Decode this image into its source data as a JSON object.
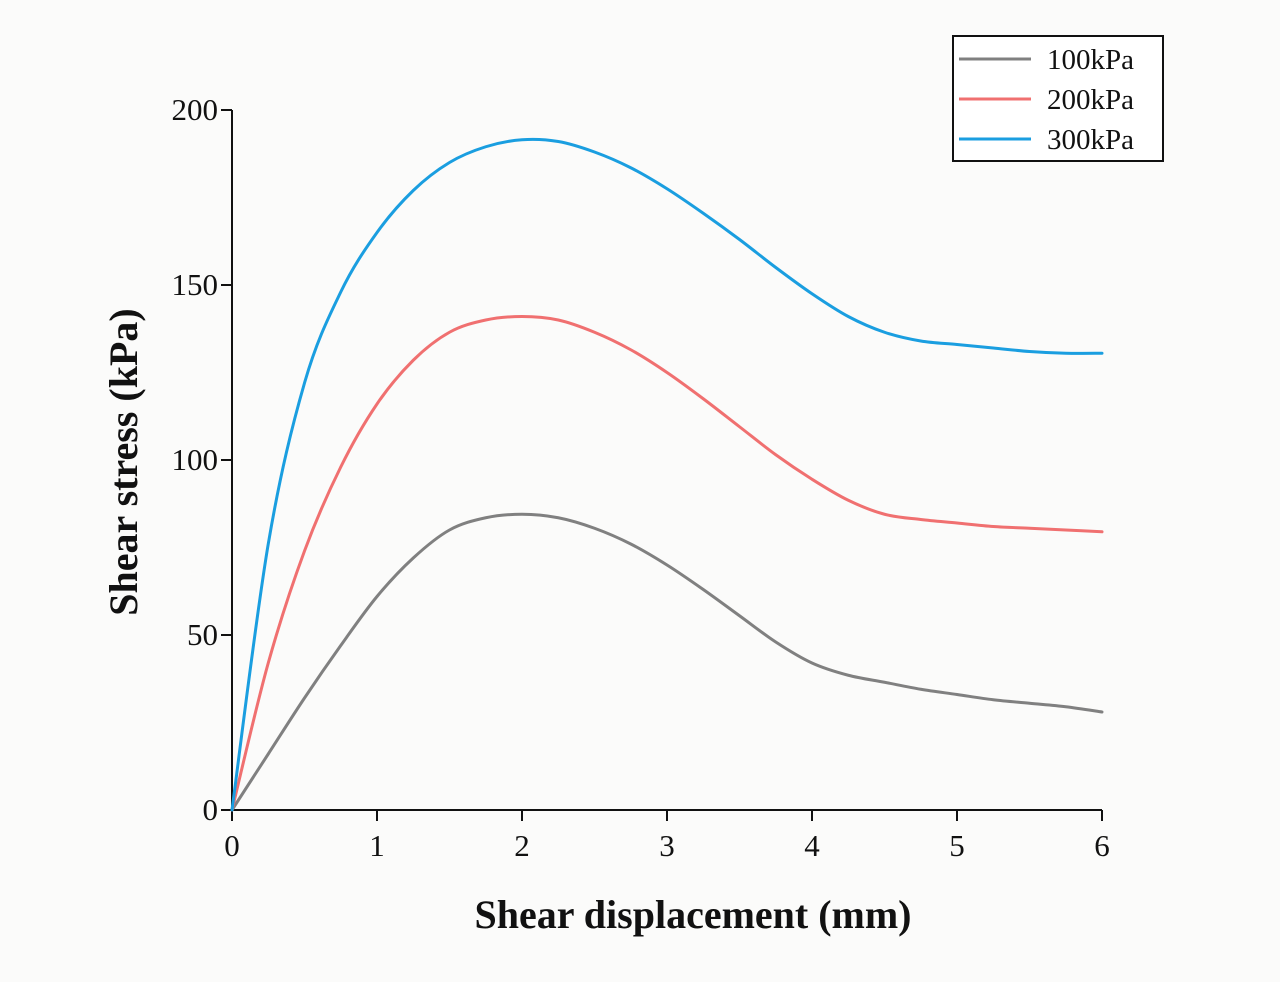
{
  "chart_data": {
    "type": "line",
    "title": "",
    "xlabel": "Shear displacement (mm)",
    "ylabel": "Shear stress (kPa)",
    "xlim": [
      0,
      6
    ],
    "ylim": [
      0,
      200
    ],
    "xticks": [
      0,
      1,
      2,
      3,
      4,
      5,
      6
    ],
    "yticks": [
      0,
      50,
      100,
      150,
      200
    ],
    "xtick_labels": [
      "0",
      "1",
      "2",
      "3",
      "4",
      "5",
      "6"
    ],
    "ytick_labels": [
      "0",
      "50",
      "100",
      "150",
      "200"
    ],
    "grid": false,
    "legend_position": "top-right",
    "series": [
      {
        "name": "100kPa",
        "color": "#808080",
        "x": [
          0,
          0.25,
          0.5,
          0.75,
          1.0,
          1.25,
          1.5,
          1.75,
          2.0,
          2.25,
          2.5,
          2.75,
          3.0,
          3.25,
          3.5,
          3.75,
          4.0,
          4.25,
          4.5,
          4.75,
          5.0,
          5.25,
          5.5,
          5.75,
          6.0
        ],
        "y": [
          0,
          16,
          32,
          47,
          61,
          72,
          80,
          83.5,
          84.5,
          83.5,
          80.5,
          76,
          70,
          63,
          55.5,
          48,
          42,
          38.5,
          36.5,
          34.5,
          33,
          31.5,
          30.5,
          29.5,
          28
        ]
      },
      {
        "name": "200kPa",
        "color": "#f07070",
        "x": [
          0,
          0.25,
          0.5,
          0.75,
          1.0,
          1.25,
          1.5,
          1.75,
          2.0,
          2.25,
          2.5,
          2.75,
          3.0,
          3.25,
          3.5,
          3.75,
          4.0,
          4.25,
          4.5,
          4.75,
          5.0,
          5.25,
          5.5,
          5.75,
          6.0
        ],
        "y": [
          0,
          42,
          74,
          98,
          116,
          128.5,
          136.5,
          140,
          141,
          140,
          136.5,
          131.5,
          125,
          117.5,
          109.5,
          101.5,
          94.5,
          88.5,
          84.5,
          83,
          82,
          81,
          80.5,
          80,
          79.5
        ]
      },
      {
        "name": "300kPa",
        "color": "#1a9ee0",
        "x": [
          0,
          0.25,
          0.5,
          0.75,
          1.0,
          1.25,
          1.5,
          1.75,
          2.0,
          2.25,
          2.5,
          2.75,
          3.0,
          3.25,
          3.5,
          3.75,
          4.0,
          4.25,
          4.5,
          4.75,
          5.0,
          5.25,
          5.5,
          5.75,
          6.0
        ],
        "y": [
          0,
          76,
          122,
          148,
          165,
          177,
          185,
          189.5,
          191.5,
          191,
          188,
          183.5,
          177.5,
          170.5,
          163,
          155,
          147.5,
          141,
          136.5,
          134,
          133,
          132,
          131,
          130.5,
          130.5
        ]
      }
    ]
  }
}
